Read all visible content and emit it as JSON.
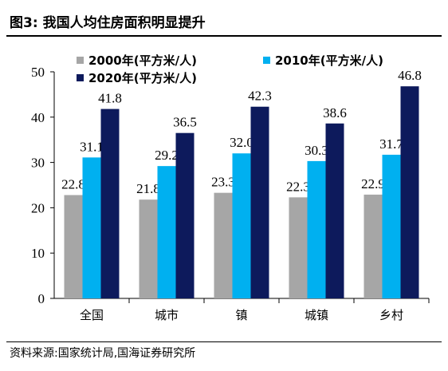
{
  "header": {
    "figure_label": "图3:",
    "title": "我国人均住房面积明显提升"
  },
  "footer": {
    "source": "资料来源:国家统计局,国海证券研究所"
  },
  "colors": {
    "series_2000": "#a6a6a6",
    "series_2010": "#00b0f0",
    "series_2020": "#0d1a5c"
  },
  "chart_data": {
    "type": "bar",
    "categories": [
      "全国",
      "城市",
      "镇",
      "城镇",
      "乡村"
    ],
    "series": [
      {
        "name": "2000年(平方米/人)",
        "values": [
          22.8,
          21.8,
          23.3,
          22.3,
          22.9
        ]
      },
      {
        "name": "2010年(平方米/人)",
        "values": [
          31.1,
          29.2,
          32.0,
          30.3,
          31.7
        ]
      },
      {
        "name": "2020年(平方米/人)",
        "values": [
          41.8,
          36.5,
          42.3,
          38.6,
          46.8
        ]
      }
    ],
    "value_labels": [
      [
        "22.8",
        "21.8",
        "23.3",
        "22.3",
        "22.9"
      ],
      [
        "31.1",
        "29.2",
        "32.0",
        "30.3",
        "31.7"
      ],
      [
        "41.8",
        "36.5",
        "42.3",
        "38.6",
        "46.8"
      ]
    ],
    "y_ticks": [
      "0",
      "10",
      "20",
      "30",
      "40",
      "50"
    ],
    "ylim": [
      0,
      50
    ],
    "legend_position": "top-left",
    "grid": false
  }
}
